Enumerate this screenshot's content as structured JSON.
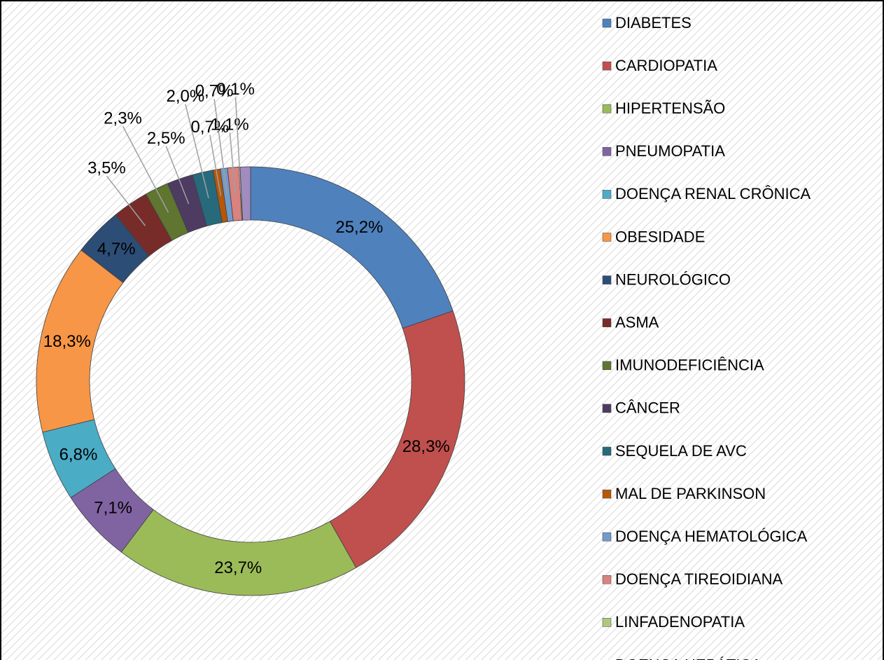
{
  "chart_data": {
    "type": "donut",
    "categories": [
      "DIABETES",
      "CARDIOPATIA",
      "HIPERTENSÃO",
      "PNEUMOPATIA",
      "DOENÇA RENAL CRÔNICA",
      "OBESIDADE",
      "NEUROLÓGICO",
      "ASMA",
      "IMUNODEFICIÊNCIA",
      "CÂNCER",
      "SEQUELA DE AVC",
      "MAL DE PARKINSON",
      "DOENÇA HEMATOLÓGICA",
      "DOENÇA TIREOIDIANA",
      "LINFADENOPATIA",
      "DOENÇA HEPÁTICA"
    ],
    "values": [
      25.2,
      28.3,
      23.7,
      7.1,
      6.8,
      18.3,
      4.7,
      3.5,
      2.3,
      2.5,
      2.0,
      0.7,
      0.7,
      1.1,
      0.1,
      1.0
    ],
    "value_labels": [
      "25,2%",
      "28,3%",
      "23,7%",
      "7,1%",
      "6,8%",
      "18,3%",
      "4,7%",
      "3,5%",
      "2,3%",
      "2,5%",
      "2,0%",
      "0,7%",
      "0,7%",
      "1,1%",
      "0,1%",
      null
    ],
    "colors": [
      "#4f81bd",
      "#c0504d",
      "#9bbb59",
      "#8064a2",
      "#4bacc6",
      "#f79646",
      "#2c4d75",
      "#772c2a",
      "#5f7530",
      "#4d3b62",
      "#276a7c",
      "#b65708",
      "#729aca",
      "#d9827f",
      "#afc97a",
      "#a08cbf"
    ],
    "legend": "right"
  }
}
